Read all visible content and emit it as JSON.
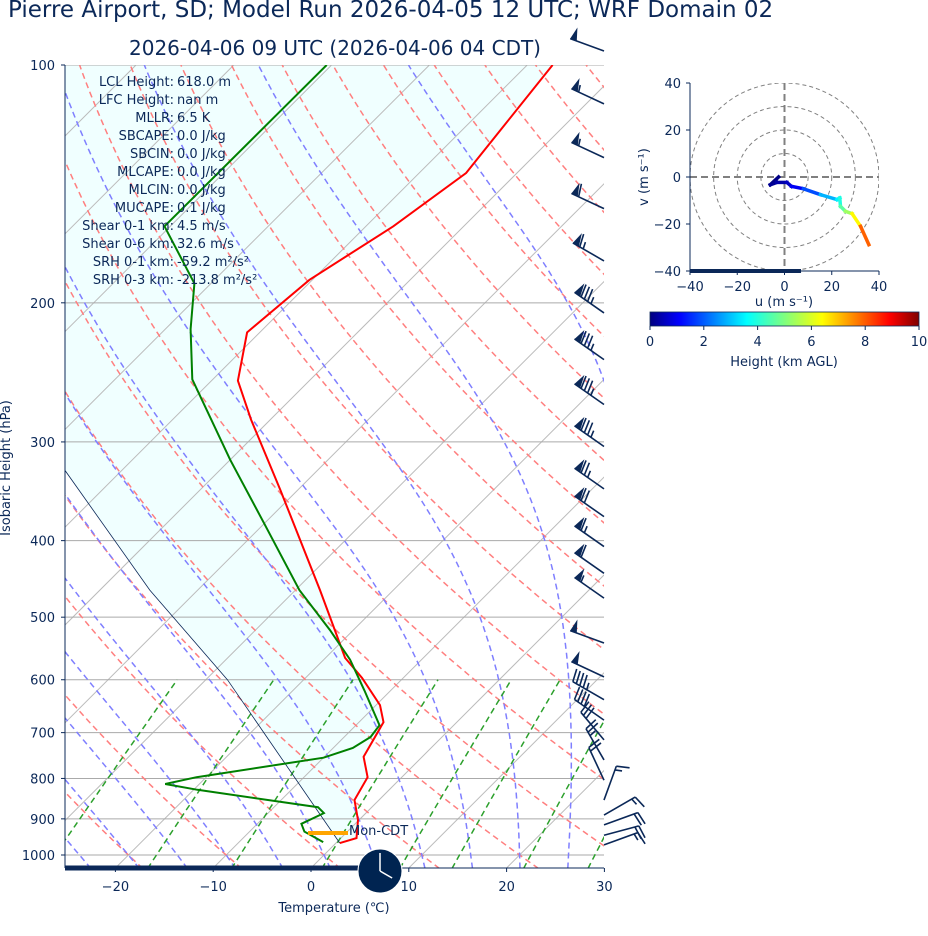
{
  "header": {
    "title": "Pierre Airport, SD; Model Run 2026-04-05 12 UTC; WRF Domain 02",
    "subtitle": "2026-04-06 09 UTC  (2026-04-06 04 CDT)"
  },
  "colors": {
    "text": "#0b2858",
    "temperature": "#ff0000",
    "dewpoint": "#008000",
    "parcel": "#0b2858",
    "cin_fill": "#f0ffff",
    "dry_adiabat": "#ff7f7f",
    "moist_adiabat": "#7f7fff",
    "mixing_ratio": "#2ca02c",
    "isotherm": "#bbbbbb",
    "isobar": "#aaaaaa",
    "day_marker": "#ffa500",
    "clock": "#002451"
  },
  "stats": [
    {
      "label": "LCL Height:",
      "value": "618.0 m"
    },
    {
      "label": "LFC Height:",
      "value": "nan m"
    },
    {
      "label": "MLLR:",
      "value": "6.5 K"
    },
    {
      "label": "SBCAPE:",
      "value": "0.0 J/kg"
    },
    {
      "label": "SBCIN:",
      "value": "0.0 J/kg"
    },
    {
      "label": "MLCAPE:",
      "value": "0.0 J/kg"
    },
    {
      "label": "MLCIN:",
      "value": "0.0 J/kg"
    },
    {
      "label": "MUCAPE:",
      "value": "0.1 J/kg"
    },
    {
      "label": "Shear 0-1 km:",
      "value": "4.5 m/s"
    },
    {
      "label": "Shear 0-6 km:",
      "value": "32.6 m/s"
    },
    {
      "label": "SRH 0-1 km:",
      "value": "-59.2 m²/s²"
    },
    {
      "label": "SRH 0-3 km:",
      "value": "-213.8 m²/s²"
    }
  ],
  "day_label": "Mon-CDT",
  "clock_time": "04:00",
  "time_progress": 0.55,
  "chart_data": [
    {
      "type": "skew-t",
      "xlabel": "Temperature (℃)",
      "ylabel": "Isobaric Height (hPa)",
      "xlim": [
        -25,
        30
      ],
      "ylim": [
        1040,
        100
      ],
      "yscale": "log",
      "xticks": [
        "−20",
        "−10",
        "0",
        "10",
        "20",
        "30"
      ],
      "xtick_values": [
        -20,
        -10,
        0,
        10,
        20,
        30
      ],
      "yticks": [
        "100",
        "200",
        "300",
        "400",
        "500",
        "600",
        "700",
        "800",
        "900",
        "1000"
      ],
      "ytick_values": [
        100,
        200,
        300,
        400,
        500,
        600,
        700,
        800,
        900,
        1000
      ],
      "temperature": {
        "p": [
          966,
          952,
          903,
          852,
          797,
          751,
          679,
          646,
          597,
          563,
          519,
          462,
          345,
          281,
          251,
          218,
          187,
          160,
          137,
          100
        ],
        "T": [
          0.4,
          1.6,
          -0.1,
          -2.5,
          -3.5,
          -6.0,
          -7.5,
          -9.6,
          -14.2,
          -18.0,
          -21.9,
          -27.5,
          -41.8,
          -52.0,
          -57.3,
          -61.3,
          -60.3,
          -57.2,
          -55.2,
          -57.4
        ]
      },
      "dewpoint": {
        "p": [
          963,
          934,
          913,
          885,
          870,
          827,
          813,
          797,
          753,
          732,
          709,
          685,
          619,
          566,
          519,
          462,
          382,
          316,
          250,
          216,
          189,
          160,
          100
        ],
        "Td": [
          -1.4,
          -4.4,
          -5.5,
          -4.3,
          -5.5,
          -19.6,
          -23.5,
          -21.0,
          -10.0,
          -8.0,
          -7.3,
          -7.6,
          -12.7,
          -17.3,
          -22.4,
          -29.6,
          -39.8,
          -50.0,
          -62.1,
          -67.4,
          -71.7,
          -80.6,
          -80.5
        ]
      },
      "parcel": {
        "p": [
          966,
          600,
          462,
          326,
          100
        ],
        "T": [
          0.4,
          -27.8,
          -44.9,
          -65.8,
          -130
        ]
      },
      "dry_adiabats_T0_C": {
        "start": -30,
        "stop": 200,
        "step": 10
      },
      "moist_adiabats_T0_C": {
        "start": -30,
        "stop": 45,
        "step": 5
      },
      "mixing_ratios": [
        0.0004,
        0.001,
        0.002,
        0.004,
        0.007,
        0.01,
        0.016,
        0.024,
        0.032
      ],
      "wind_barbs": {
        "units": "kt",
        "p": [
          96,
          112,
          131,
          152,
          177,
          206,
          236,
          269,
          304,
          344,
          373,
          407,
          440,
          473,
          539,
          595,
          636,
          675,
          715,
          758,
          804,
          852,
          890,
          916,
          944,
          971
        ],
        "dir": [
          290,
          295,
          295,
          295,
          300,
          305,
          305,
          305,
          305,
          305,
          305,
          305,
          305,
          305,
          290,
          295,
          300,
          305,
          320,
          330,
          335,
          20,
          60,
          70,
          75,
          70
        ],
        "speed": [
          50,
          55,
          55,
          60,
          65,
          85,
          85,
          85,
          85,
          75,
          70,
          65,
          60,
          55,
          50,
          50,
          45,
          40,
          30,
          25,
          20,
          15,
          15,
          20,
          20,
          15
        ]
      }
    },
    {
      "type": "hodograph",
      "xlabel": "u (m s⁻¹)",
      "ylabel": "v (m s⁻¹)",
      "xlim": [
        -40,
        40
      ],
      "ylim": [
        -40,
        40
      ],
      "xticks": [
        "−40",
        "−20",
        "0",
        "20",
        "40"
      ],
      "xtick_values": [
        -40,
        -20,
        0,
        20,
        40
      ],
      "yticks": [
        "40",
        "20",
        "0",
        "−20",
        "−40"
      ],
      "ytick_values": [
        40,
        20,
        0,
        -20,
        -40
      ],
      "rings": [
        10,
        20,
        30,
        40
      ],
      "u": [
        -2.5,
        -6,
        -3.3,
        1,
        3,
        8,
        15.2,
        22.2,
        23.4,
        23.7,
        25.8,
        28.6,
        32.2,
        35.7
      ],
      "v": [
        0,
        -3.3,
        -2.3,
        -2.3,
        -4,
        -5,
        -7.5,
        -9.6,
        -8.9,
        -12.5,
        -14.6,
        -15.6,
        -21,
        -28.8
      ],
      "height_km": [
        0,
        0.1,
        0.3,
        0.5,
        0.8,
        1.5,
        2.5,
        3.5,
        3.8,
        4.3,
        5.0,
        5.6,
        7.0,
        8.6
      ],
      "colorbar": {
        "label": "Height (km AGL)",
        "colormap": "jet",
        "range": [
          0,
          10
        ],
        "ticks": [
          "0",
          "2",
          "4",
          "6",
          "8",
          "10"
        ],
        "tick_values": [
          0,
          2,
          4,
          6,
          8,
          10
        ]
      },
      "time_progress_u": 7
    }
  ]
}
